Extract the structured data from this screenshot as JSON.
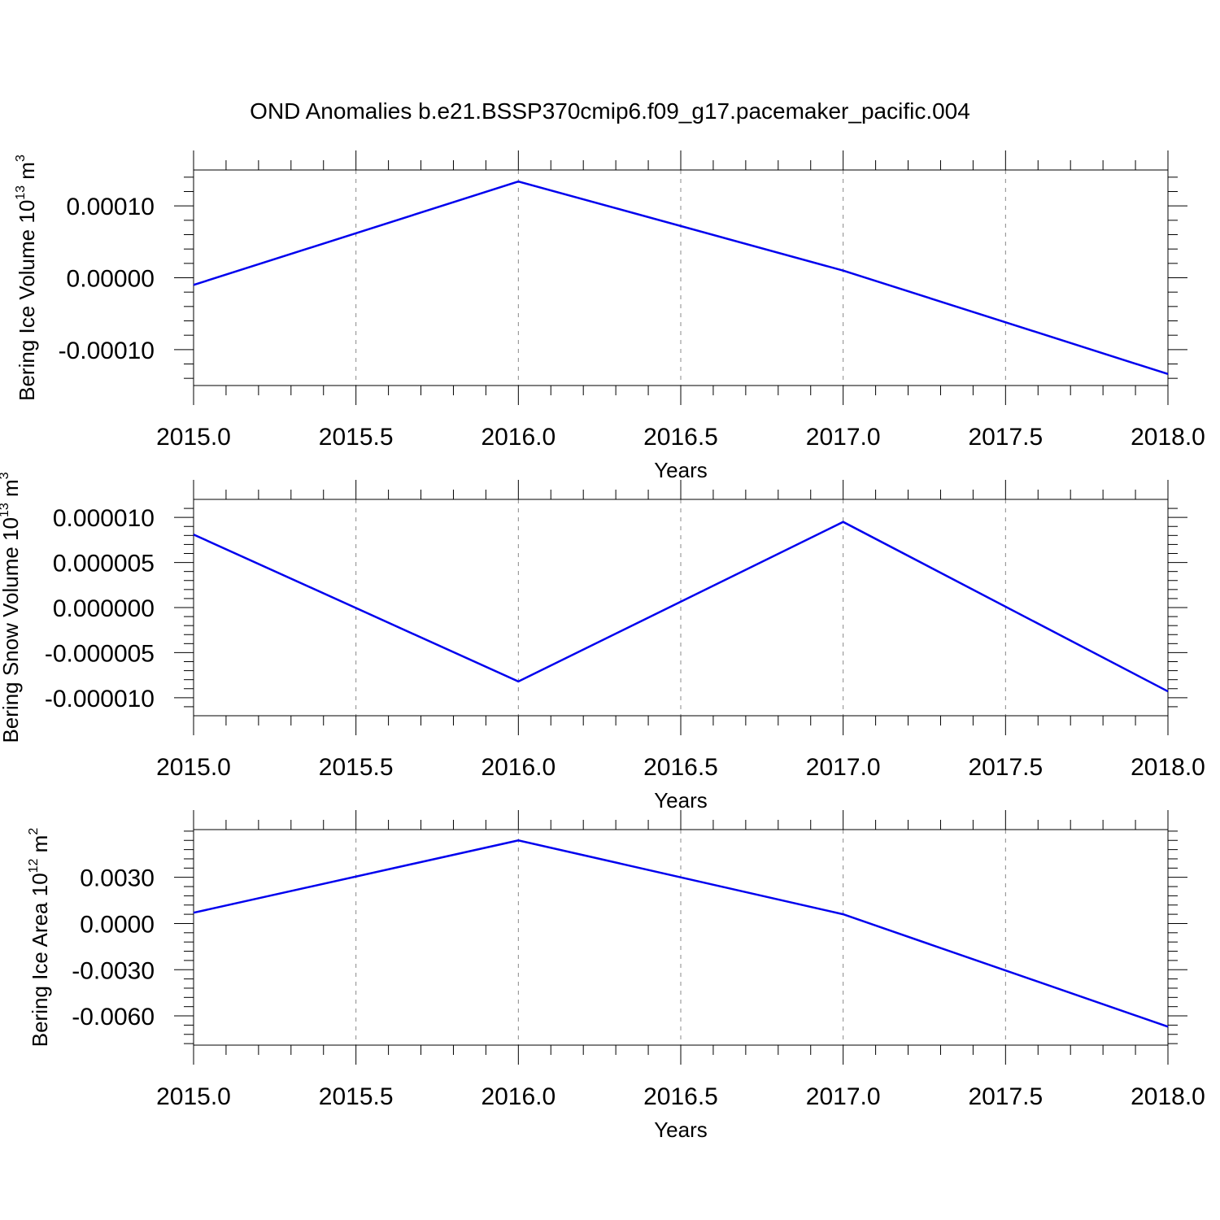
{
  "title": "OND Anomalies b.e21.BSSP370cmip6.f09_g17.pacemaker_pacific.004",
  "line_color": "#0000ee",
  "chart_data": [
    {
      "type": "line",
      "xlabel": "Years",
      "ylabel": {
        "prefix": "Bering Ice Volume 10",
        "exp": "13",
        "unit": " m",
        "unit_exp": "3"
      },
      "x": [
        2015.0,
        2016.0,
        2017.0,
        2018.0
      ],
      "y": [
        -1e-05,
        0.000134,
        1e-05,
        -0.000134
      ],
      "xlim": [
        2015.0,
        2018.0
      ],
      "ylim": [
        -0.00015,
        0.00015
      ],
      "x_ticks": [
        "2015.0",
        "2015.5",
        "2016.0",
        "2016.5",
        "2017.0",
        "2017.5",
        "2018.0"
      ],
      "y_ticks": [
        {
          "value": 0.0001,
          "label": "0.00010"
        },
        {
          "value": 0.0,
          "label": "0.00000"
        },
        {
          "value": -0.0001,
          "label": "-0.00010"
        }
      ],
      "grid": "vertical dashed"
    },
    {
      "type": "line",
      "xlabel": "Years",
      "ylabel": {
        "prefix": "Bering Snow Volume 10",
        "exp": "13",
        "unit": " m",
        "unit_exp": "3"
      },
      "x": [
        2015.0,
        2016.0,
        2017.0,
        2018.0
      ],
      "y": [
        8.1e-06,
        -8.2e-06,
        9.5e-06,
        -9.3e-06
      ],
      "xlim": [
        2015.0,
        2018.0
      ],
      "ylim": [
        -1.2e-05,
        1.2e-05
      ],
      "x_ticks": [
        "2015.0",
        "2015.5",
        "2016.0",
        "2016.5",
        "2017.0",
        "2017.5",
        "2018.0"
      ],
      "y_ticks": [
        {
          "value": 1e-05,
          "label": "0.000010"
        },
        {
          "value": 5e-06,
          "label": "0.000005"
        },
        {
          "value": 0.0,
          "label": "0.000000"
        },
        {
          "value": -5e-06,
          "label": "-0.000005"
        },
        {
          "value": -1e-05,
          "label": "-0.000010"
        }
      ],
      "grid": "vertical dashed"
    },
    {
      "type": "line",
      "xlabel": "Years",
      "ylabel": {
        "prefix": "Bering Ice Area 10",
        "exp": "12",
        "unit": " m",
        "unit_exp": "2"
      },
      "x": [
        2015.0,
        2016.0,
        2017.0,
        2018.0
      ],
      "y": [
        0.0007,
        0.0054,
        0.0006,
        -0.0067
      ],
      "xlim": [
        2015.0,
        2018.0
      ],
      "ylim": [
        -0.0079,
        0.0061
      ],
      "x_ticks": [
        "2015.0",
        "2015.5",
        "2016.0",
        "2016.5",
        "2017.0",
        "2017.5",
        "2018.0"
      ],
      "y_ticks": [
        {
          "value": 0.003,
          "label": "0.0030"
        },
        {
          "value": 0.0,
          "label": "0.0000"
        },
        {
          "value": -0.003,
          "label": "-0.0030"
        },
        {
          "value": -0.006,
          "label": "-0.0060"
        }
      ],
      "grid": "vertical dashed"
    }
  ]
}
